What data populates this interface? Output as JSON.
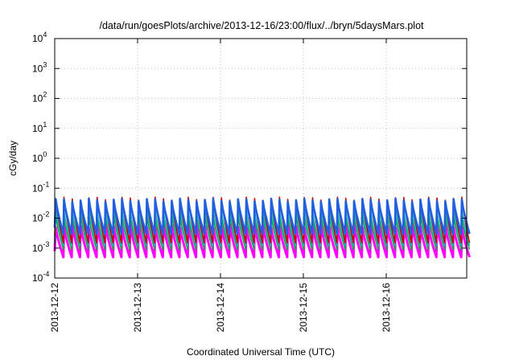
{
  "chart_data": {
    "type": "line",
    "title": "/data/run/goesPlots/archive/2013-12-16/23:00/flux/../bryn/5daysMars.plot",
    "xlabel": "Coordinated Universal Time (UTC)",
    "ylabel": "cGy/day",
    "yscale": "log",
    "ylim": [
      0.0001,
      10000
    ],
    "xlim": [
      0,
      5
    ],
    "grid": true,
    "y_ticks": [
      {
        "base": "10",
        "exp": "-4",
        "value": 0.0001
      },
      {
        "base": "10",
        "exp": "-3",
        "value": 0.001
      },
      {
        "base": "10",
        "exp": "-2",
        "value": 0.01
      },
      {
        "base": "10",
        "exp": "-1",
        "value": 0.1
      },
      {
        "base": "10",
        "exp": "0",
        "value": 1
      },
      {
        "base": "10",
        "exp": "1",
        "value": 10
      },
      {
        "base": "10",
        "exp": "2",
        "value": 100
      },
      {
        "base": "10",
        "exp": "3",
        "value": 1000
      },
      {
        "base": "10",
        "exp": "4",
        "value": 10000
      }
    ],
    "x_ticks": [
      {
        "label": "2013-12-12",
        "value": 0
      },
      {
        "label": "2013-12-13",
        "value": 1
      },
      {
        "label": "2013-12-14",
        "value": 2
      },
      {
        "label": "2013-12-15",
        "value": 3
      },
      {
        "label": "2013-12-16",
        "value": 4
      }
    ],
    "series_style": {
      "peaks_per_day": 10,
      "colors": [
        "#cc0000",
        "#1f5fe0",
        "#00c0c0",
        "#20a040",
        "#ff00ff"
      ],
      "peak_values": [
        0.045,
        0.04,
        0.02,
        0.012,
        0.0055
      ],
      "trough_values": [
        0.0015,
        0.003,
        0.0012,
        0.0009,
        0.0005
      ]
    }
  }
}
